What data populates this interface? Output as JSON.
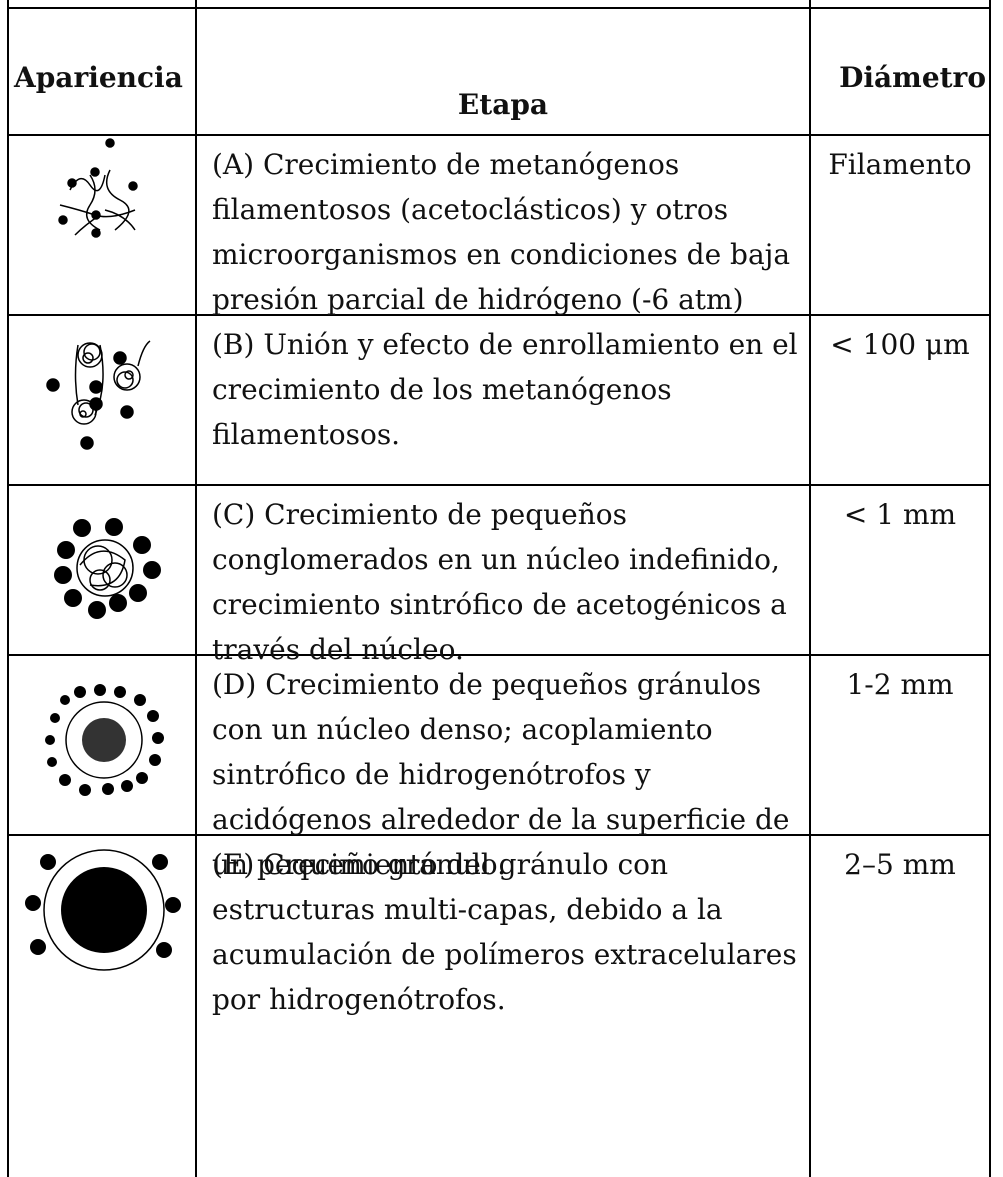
{
  "table": {
    "header": [
      "Apariencia",
      "Etapa",
      "Diámetro"
    ],
    "rows": [
      {
        "stage": "(A) Crecimiento de metanógenos filamentosos (acetoclásticos) y otros microorganismos en condiciones de baja presión parcial de hidrógeno (-6 atm)",
        "diameter": "Filamento"
      },
      {
        "stage": "(B) Unión y efecto de enrollamiento en el crecimiento de los metanógenos filamentosos.",
        "diameter": "< 100 μm"
      },
      {
        "stage": "(C) Crecimiento de pequeños conglomerados en un núcleo indefinido, crecimiento sintrófico de acetogénicos a través del núcleo.",
        "diameter": "< 1 mm"
      },
      {
        "stage": "(D) Crecimiento de pequeños gránulos con un núcleo denso; acoplamiento sintrófico de hidrogenótrofos y acidógenos alrededor de la superficie de un pequeño gránulo.",
        "diameter": "1-2 mm"
      },
      {
        "stage": "(E) Crecimiento del gránulo con estructuras multi-capas, debido a la acumulación de polímeros extracelulares por hidrogenótrofos.",
        "diameter": "2–5 mm"
      }
    ]
  }
}
